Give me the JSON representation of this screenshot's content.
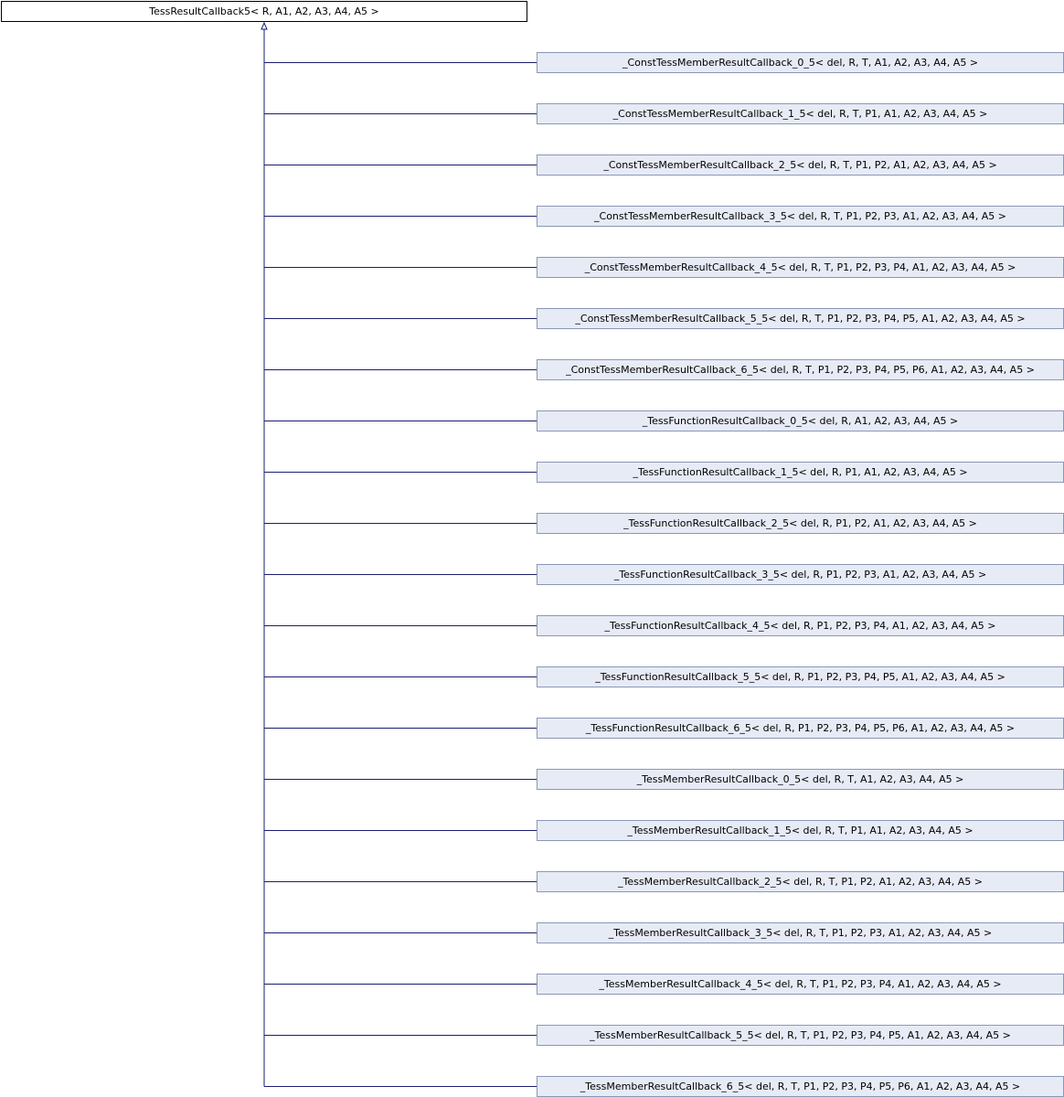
{
  "diagram": {
    "edge_color": "#1a1e6e",
    "base": {
      "label": "TessResultCallback5< R, A1, A2, A3, A4, A5 >"
    },
    "derived": [
      {
        "label": "_ConstTessMemberResultCallback_0_5< del, R, T, A1, A2, A3, A4, A5 >"
      },
      {
        "label": "_ConstTessMemberResultCallback_1_5< del, R, T, P1, A1, A2, A3, A4, A5 >"
      },
      {
        "label": "_ConstTessMemberResultCallback_2_5< del, R, T, P1, P2, A1, A2, A3, A4, A5 >"
      },
      {
        "label": "_ConstTessMemberResultCallback_3_5< del, R, T, P1, P2, P3, A1, A2, A3, A4, A5 >"
      },
      {
        "label": "_ConstTessMemberResultCallback_4_5< del, R, T, P1, P2, P3, P4, A1, A2, A3, A4, A5 >"
      },
      {
        "label": "_ConstTessMemberResultCallback_5_5< del, R, T, P1, P2, P3, P4, P5, A1, A2, A3, A4, A5 >"
      },
      {
        "label": "_ConstTessMemberResultCallback_6_5< del, R, T, P1, P2, P3, P4, P5, P6, A1, A2, A3, A4, A5 >"
      },
      {
        "label": "_TessFunctionResultCallback_0_5< del, R, A1, A2, A3, A4, A5 >"
      },
      {
        "label": "_TessFunctionResultCallback_1_5< del, R, P1, A1, A2, A3, A4, A5 >"
      },
      {
        "label": "_TessFunctionResultCallback_2_5< del, R, P1, P2, A1, A2, A3, A4, A5 >"
      },
      {
        "label": "_TessFunctionResultCallback_3_5< del, R, P1, P2, P3, A1, A2, A3, A4, A5 >"
      },
      {
        "label": "_TessFunctionResultCallback_4_5< del, R, P1, P2, P3, P4, A1, A2, A3, A4, A5 >"
      },
      {
        "label": "_TessFunctionResultCallback_5_5< del, R, P1, P2, P3, P4, P5, A1, A2, A3, A4, A5 >"
      },
      {
        "label": "_TessFunctionResultCallback_6_5< del, R, P1, P2, P3, P4, P5, P6, A1, A2, A3, A4, A5 >"
      },
      {
        "label": "_TessMemberResultCallback_0_5< del, R, T, A1, A2, A3, A4, A5 >"
      },
      {
        "label": "_TessMemberResultCallback_1_5< del, R, T, P1, A1, A2, A3, A4, A5 >"
      },
      {
        "label": "_TessMemberResultCallback_2_5< del, R, T, P1, P2, A1, A2, A3, A4, A5 >"
      },
      {
        "label": "_TessMemberResultCallback_3_5< del, R, T, P1, P2, P3, A1, A2, A3, A4, A5 >"
      },
      {
        "label": "_TessMemberResultCallback_4_5< del, R, T, P1, P2, P3, P4, A1, A2, A3, A4, A5 >"
      },
      {
        "label": "_TessMemberResultCallback_5_5< del, R, T, P1, P2, P3, P4, P5, A1, A2, A3, A4, A5 >"
      },
      {
        "label": "_TessMemberResultCallback_6_5< del, R, T, P1, P2, P3, P4, P5, P6, A1, A2, A3, A4, A5 >"
      }
    ]
  }
}
